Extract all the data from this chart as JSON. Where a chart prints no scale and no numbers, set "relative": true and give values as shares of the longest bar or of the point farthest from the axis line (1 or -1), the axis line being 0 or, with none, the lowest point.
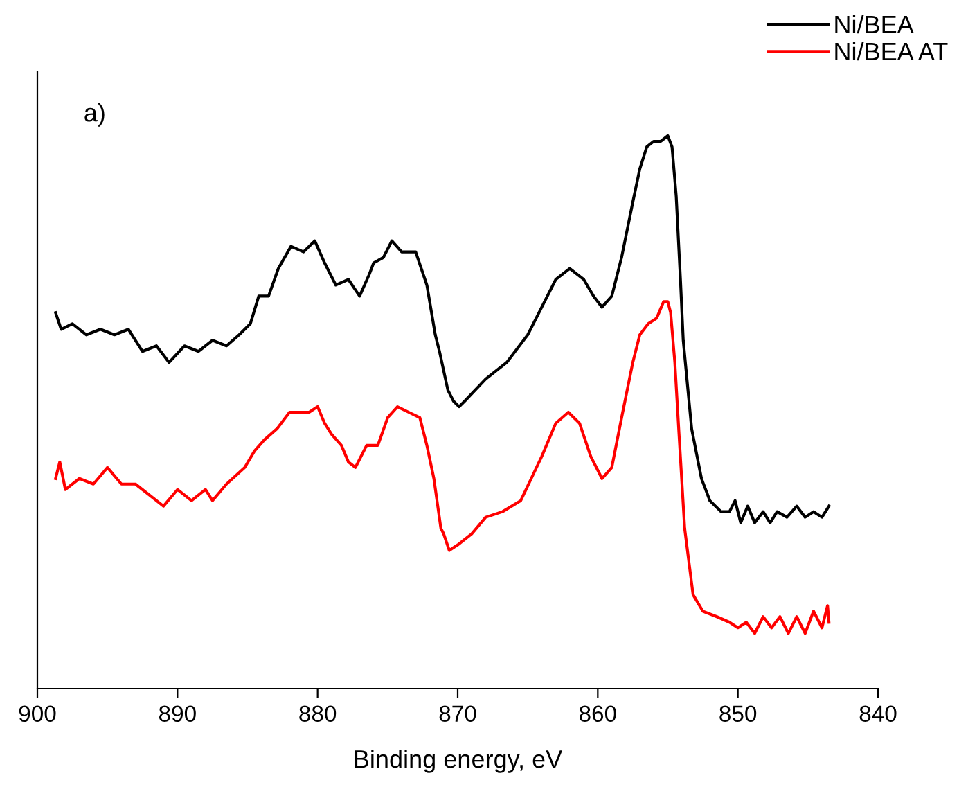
{
  "chart_data": {
    "type": "line",
    "xlabel": "Binding energy, eV",
    "annotations": [
      "a)"
    ],
    "relative": true,
    "legend": "top right",
    "grid": false,
    "marker": "none",
    "line_style": "solid",
    "xlim": [
      900,
      840
    ],
    "xticks": [
      900,
      890,
      880,
      870,
      860,
      850,
      840
    ],
    "series": [
      {
        "name": "Ni/BEA",
        "color": "#000000",
        "x": [
          898.7,
          898.3,
          897.5,
          896.5,
          895.5,
          894.5,
          893.5,
          892.5,
          891.5,
          890.6,
          889.5,
          888.5,
          887.5,
          886.5,
          885.6,
          884.8,
          884.2,
          883.5,
          882.8,
          881.9,
          881,
          880.2,
          879.5,
          878.7,
          877.8,
          877,
          876.3,
          876,
          875.3,
          874.7,
          874,
          873,
          872.2,
          871.6,
          871.3,
          870.7,
          870.3,
          869.9,
          869.5,
          868,
          866.5,
          865,
          864,
          863,
          862,
          861,
          860.3,
          859.7,
          859,
          858.3,
          857.5,
          857,
          856.5,
          856,
          855.5,
          855,
          854.7,
          854.4,
          854.1,
          853.9,
          853.3,
          852.6,
          852,
          851.2,
          850.6,
          850.2,
          849.8,
          849.3,
          848.8,
          848.2,
          847.7,
          847.2,
          846.5,
          845.8,
          845.2,
          844.6,
          844,
          843.5
        ],
        "values": [
          0.68,
          0.65,
          0.66,
          0.64,
          0.65,
          0.64,
          0.65,
          0.61,
          0.62,
          0.59,
          0.62,
          0.61,
          0.63,
          0.62,
          0.64,
          0.66,
          0.71,
          0.71,
          0.76,
          0.8,
          0.79,
          0.81,
          0.77,
          0.73,
          0.74,
          0.71,
          0.75,
          0.77,
          0.78,
          0.81,
          0.79,
          0.79,
          0.73,
          0.64,
          0.61,
          0.54,
          0.52,
          0.51,
          0.52,
          0.56,
          0.59,
          0.64,
          0.69,
          0.74,
          0.76,
          0.74,
          0.71,
          0.69,
          0.71,
          0.78,
          0.88,
          0.94,
          0.98,
          0.99,
          0.99,
          1.0,
          0.98,
          0.89,
          0.74,
          0.63,
          0.47,
          0.38,
          0.34,
          0.32,
          0.32,
          0.34,
          0.3,
          0.33,
          0.3,
          0.32,
          0.3,
          0.32,
          0.31,
          0.33,
          0.31,
          0.32,
          0.31,
          0.33
        ]
      },
      {
        "name": "Ni/BEA AT",
        "color": "#ff0000",
        "x": [
          898.7,
          898.4,
          898,
          897,
          896,
          895,
          894,
          893,
          892,
          891,
          890,
          889,
          888,
          887.5,
          886.5,
          885.2,
          884.5,
          883.8,
          882.9,
          882,
          881.6,
          880.6,
          880,
          879.5,
          879,
          878.3,
          877.8,
          877.3,
          876.5,
          875.7,
          875,
          874.3,
          873.5,
          872.7,
          872.2,
          871.7,
          871.2,
          871,
          870.6,
          870,
          869,
          868,
          866.8,
          865.5,
          864,
          863,
          862.1,
          861.3,
          860.5,
          859.7,
          859,
          858.3,
          857.5,
          857,
          856.4,
          855.8,
          855.3,
          855,
          854.8,
          854.5,
          854.2,
          853.8,
          853.2,
          852.5,
          851.5,
          850.6,
          850,
          849.4,
          848.8,
          848.2,
          847.6,
          847,
          846.4,
          845.8,
          845.2,
          844.6,
          844,
          843.6,
          843.5
        ],
        "values": [
          0.38,
          0.41,
          0.36,
          0.38,
          0.37,
          0.4,
          0.37,
          0.37,
          0.35,
          0.33,
          0.36,
          0.34,
          0.36,
          0.34,
          0.37,
          0.4,
          0.43,
          0.45,
          0.47,
          0.5,
          0.5,
          0.5,
          0.51,
          0.48,
          0.46,
          0.44,
          0.41,
          0.4,
          0.44,
          0.44,
          0.49,
          0.51,
          0.5,
          0.49,
          0.44,
          0.38,
          0.29,
          0.28,
          0.25,
          0.26,
          0.28,
          0.31,
          0.32,
          0.34,
          0.42,
          0.48,
          0.5,
          0.48,
          0.42,
          0.38,
          0.4,
          0.49,
          0.59,
          0.64,
          0.66,
          0.67,
          0.7,
          0.7,
          0.68,
          0.59,
          0.46,
          0.29,
          0.17,
          0.14,
          0.13,
          0.12,
          0.11,
          0.12,
          0.1,
          0.13,
          0.11,
          0.13,
          0.1,
          0.13,
          0.1,
          0.14,
          0.11,
          0.15,
          0.12
        ]
      }
    ]
  }
}
